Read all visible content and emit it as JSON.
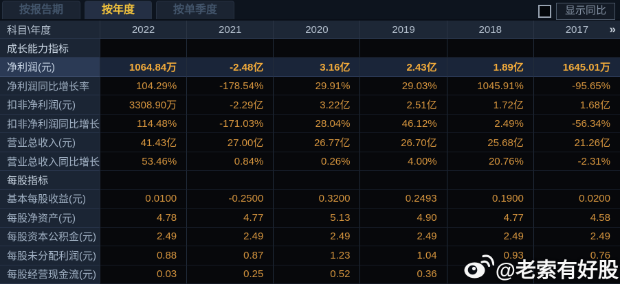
{
  "tabs": [
    {
      "label": "按报告期",
      "active": false
    },
    {
      "label": "按年度",
      "active": true
    },
    {
      "label": "按单季度",
      "active": false
    }
  ],
  "controls": {
    "show_yoy_label": "显示同比",
    "checkbox_checked": false
  },
  "table": {
    "corner_label": "科目\\年度",
    "years": [
      "2022",
      "2021",
      "2020",
      "2019",
      "2018",
      "2017"
    ],
    "more_icon": "»",
    "rows": [
      {
        "type": "section",
        "highlight": false,
        "label": "成长能力指标",
        "values": [
          "",
          "",
          "",
          "",
          "",
          ""
        ]
      },
      {
        "type": "data",
        "highlight": true,
        "label": "净利润(元)",
        "values": [
          "1064.84万",
          "-2.48亿",
          "3.16亿",
          "2.43亿",
          "1.89亿",
          "1645.01万"
        ]
      },
      {
        "type": "data",
        "highlight": false,
        "label": "净利润同比增长率",
        "values": [
          "104.29%",
          "-178.54%",
          "29.91%",
          "29.03%",
          "1045.91%",
          "-95.65%"
        ]
      },
      {
        "type": "data",
        "highlight": false,
        "label": "扣非净利润(元)",
        "values": [
          "3308.90万",
          "-2.29亿",
          "3.22亿",
          "2.51亿",
          "1.72亿",
          "1.68亿"
        ]
      },
      {
        "type": "data",
        "highlight": false,
        "label": "扣非净利润同比增长率",
        "values": [
          "114.48%",
          "-171.03%",
          "28.04%",
          "46.12%",
          "2.49%",
          "-56.34%"
        ]
      },
      {
        "type": "data",
        "highlight": false,
        "label": "营业总收入(元)",
        "values": [
          "41.43亿",
          "27.00亿",
          "26.77亿",
          "26.70亿",
          "25.68亿",
          "21.26亿"
        ]
      },
      {
        "type": "data",
        "highlight": false,
        "label": "营业总收入同比增长率",
        "values": [
          "53.46%",
          "0.84%",
          "0.26%",
          "4.00%",
          "20.76%",
          "-2.31%"
        ]
      },
      {
        "type": "section",
        "highlight": false,
        "label": "每股指标",
        "values": [
          "",
          "",
          "",
          "",
          "",
          ""
        ]
      },
      {
        "type": "data",
        "highlight": false,
        "label": "基本每股收益(元)",
        "values": [
          "0.0100",
          "-0.2500",
          "0.3200",
          "0.2493",
          "0.1900",
          "0.0200"
        ]
      },
      {
        "type": "data",
        "highlight": false,
        "label": "每股净资产(元)",
        "values": [
          "4.78",
          "4.77",
          "5.13",
          "4.90",
          "4.77",
          "4.58"
        ]
      },
      {
        "type": "data",
        "highlight": false,
        "label": "每股资本公积金(元)",
        "values": [
          "2.49",
          "2.49",
          "2.49",
          "2.49",
          "2.49",
          "2.49"
        ]
      },
      {
        "type": "data",
        "highlight": false,
        "label": "每股未分配利润(元)",
        "values": [
          "0.88",
          "0.87",
          "1.23",
          "1.04",
          "0.93",
          "0.76"
        ]
      },
      {
        "type": "data",
        "highlight": false,
        "label": "每股经营现金流(元)",
        "values": [
          "0.03",
          "0.25",
          "0.52",
          "0.36",
          "",
          ""
        ]
      }
    ]
  },
  "watermark": {
    "icon": "weibo-icon",
    "text": "@老索有好股"
  },
  "colors": {
    "accent_gold": "#f2c23c",
    "value_orange": "#d6953e",
    "highlight_value_orange": "#f2ab3a",
    "header_bg": "#1d2736",
    "label_column_bg": "#1b2534",
    "highlight_label_bg": "#2b3a55",
    "highlight_data_bg": "#1a2539",
    "data_cell_bg": "#07080b"
  }
}
